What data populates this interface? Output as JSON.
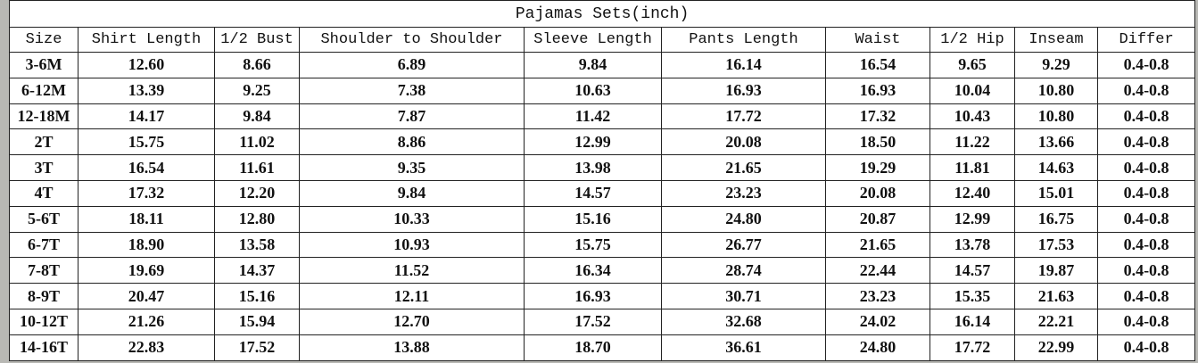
{
  "table": {
    "title": "Pajamas Sets(inch)",
    "headers": [
      "Size",
      "Shirt Length",
      "1/2 Bust",
      "Shoulder to Shoulder",
      "Sleeve Length",
      "Pants Length",
      "Waist",
      "1/2 Hip",
      "Inseam",
      "Differ"
    ],
    "rows": [
      [
        "3-6M",
        "12.60",
        "8.66",
        "6.89",
        "9.84",
        "16.14",
        "16.54",
        "9.65",
        "9.29",
        "0.4-0.8"
      ],
      [
        "6-12M",
        "13.39",
        "9.25",
        "7.38",
        "10.63",
        "16.93",
        "16.93",
        "10.04",
        "10.80",
        "0.4-0.8"
      ],
      [
        "12-18M",
        "14.17",
        "9.84",
        "7.87",
        "11.42",
        "17.72",
        "17.32",
        "10.43",
        "10.80",
        "0.4-0.8"
      ],
      [
        "2T",
        "15.75",
        "11.02",
        "8.86",
        "12.99",
        "20.08",
        "18.50",
        "11.22",
        "13.66",
        "0.4-0.8"
      ],
      [
        "3T",
        "16.54",
        "11.61",
        "9.35",
        "13.98",
        "21.65",
        "19.29",
        "11.81",
        "14.63",
        "0.4-0.8"
      ],
      [
        "4T",
        "17.32",
        "12.20",
        "9.84",
        "14.57",
        "23.23",
        "20.08",
        "12.40",
        "15.01",
        "0.4-0.8"
      ],
      [
        "5-6T",
        "18.11",
        "12.80",
        "10.33",
        "15.16",
        "24.80",
        "20.87",
        "12.99",
        "16.75",
        "0.4-0.8"
      ],
      [
        "6-7T",
        "18.90",
        "13.58",
        "10.93",
        "15.75",
        "26.77",
        "21.65",
        "13.78",
        "17.53",
        "0.4-0.8"
      ],
      [
        "7-8T",
        "19.69",
        "14.37",
        "11.52",
        "16.34",
        "28.74",
        "22.44",
        "14.57",
        "19.87",
        "0.4-0.8"
      ],
      [
        "8-9T",
        "20.47",
        "15.16",
        "12.11",
        "16.93",
        "30.71",
        "23.23",
        "15.35",
        "21.63",
        "0.4-0.8"
      ],
      [
        "10-12T",
        "21.26",
        "15.94",
        "12.70",
        "17.52",
        "32.68",
        "24.02",
        "16.14",
        "22.21",
        "0.4-0.8"
      ],
      [
        "14-16T",
        "22.83",
        "17.52",
        "13.88",
        "18.70",
        "36.61",
        "24.80",
        "17.72",
        "22.99",
        "0.4-0.8"
      ]
    ]
  }
}
